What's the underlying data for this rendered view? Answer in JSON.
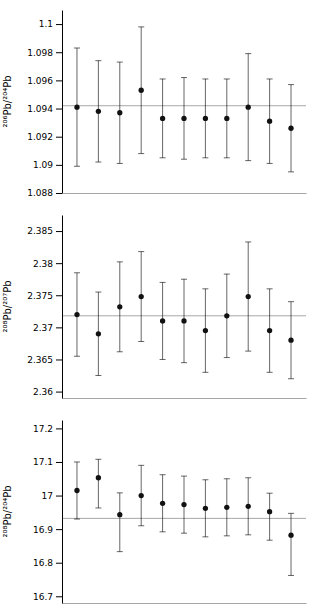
{
  "chart_data": [
    {
      "type": "scatter",
      "ylabel": "²⁰⁶Pb/²⁰⁴Pb",
      "x": [
        1,
        2,
        3,
        4,
        5,
        6,
        7,
        8,
        9,
        10,
        11
      ],
      "values": [
        1.0941,
        1.0938,
        1.0937,
        1.0953,
        1.0933,
        1.0933,
        1.0933,
        1.0933,
        1.0941,
        1.0931,
        1.0926
      ],
      "error_minus": [
        0.0042,
        0.0036,
        0.0036,
        0.0045,
        0.0028,
        0.0029,
        0.0028,
        0.0028,
        0.0038,
        0.003,
        0.0031
      ],
      "error_plus": [
        0.0042,
        0.0036,
        0.0036,
        0.0045,
        0.0028,
        0.0029,
        0.0028,
        0.0028,
        0.0038,
        0.003,
        0.0031
      ],
      "hline": 1.0942,
      "color": "#111111",
      "marker": "circle",
      "xlim": [
        0.3,
        11.7
      ],
      "ylim": [
        1.088,
        1.101
      ],
      "yticks": [
        1.088,
        1.09,
        1.092,
        1.094,
        1.096,
        1.098,
        1.1
      ],
      "tick_labels": "y",
      "grid": false
    },
    {
      "type": "scatter",
      "ylabel": "²⁰⁸Pb/²⁰⁷Pb",
      "x": [
        1,
        2,
        3,
        4,
        5,
        6,
        7,
        8,
        9,
        10,
        11
      ],
      "values": [
        2.372,
        2.369,
        2.3732,
        2.3748,
        2.371,
        2.371,
        2.3695,
        2.3718,
        2.3748,
        2.3695,
        2.368
      ],
      "error_minus": [
        0.0065,
        0.0065,
        0.007,
        0.007,
        0.006,
        0.0065,
        0.0065,
        0.0065,
        0.0085,
        0.0065,
        0.006
      ],
      "error_plus": [
        0.0065,
        0.0065,
        0.007,
        0.007,
        0.006,
        0.0065,
        0.0065,
        0.0065,
        0.0085,
        0.0065,
        0.006
      ],
      "hline": 2.3718,
      "color": "#111111",
      "marker": "circle",
      "xlim": [
        0.3,
        11.7
      ],
      "ylim": [
        2.359,
        2.3875
      ],
      "yticks": [
        2.36,
        2.365,
        2.37,
        2.375,
        2.38,
        2.385
      ],
      "tick_labels": "y",
      "grid": false
    },
    {
      "type": "scatter",
      "ylabel": "²⁰⁸Pb/²⁰⁴Pb",
      "x": [
        1,
        2,
        3,
        4,
        5,
        6,
        7,
        8,
        9,
        10,
        11
      ],
      "values": [
        17.015,
        17.053,
        16.943,
        17.0,
        16.977,
        16.973,
        16.962,
        16.965,
        16.968,
        16.952,
        16.882
      ],
      "error_minus": [
        0.085,
        0.09,
        0.11,
        0.09,
        0.085,
        0.085,
        0.085,
        0.085,
        0.085,
        0.085,
        0.12
      ],
      "error_plus": [
        0.085,
        0.055,
        0.065,
        0.09,
        0.085,
        0.085,
        0.085,
        0.085,
        0.085,
        0.055,
        0.065
      ],
      "hline": 16.932,
      "color": "#111111",
      "marker": "circle",
      "xlim": [
        0.3,
        11.7
      ],
      "ylim": [
        16.68,
        17.225
      ],
      "yticks": [
        16.7,
        16.8,
        16.9,
        17,
        17.1,
        17.2
      ],
      "tick_labels": "y",
      "grid": false
    }
  ]
}
